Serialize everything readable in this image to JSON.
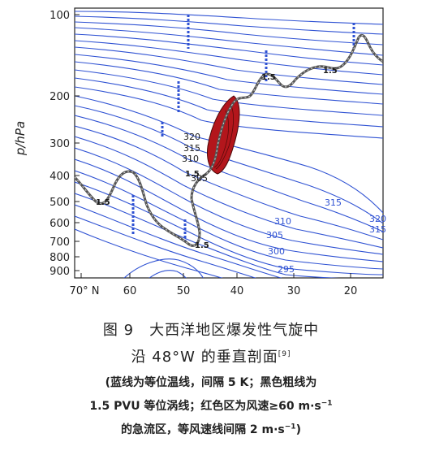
{
  "figure": {
    "y_axis_label": "p/hPa",
    "y_ticks": [
      "100",
      "200",
      "300",
      "400",
      "500",
      "600",
      "700",
      "800",
      "900"
    ],
    "x_ticks": [
      "70° N",
      "60",
      "50",
      "40",
      "30",
      "20"
    ],
    "isentrope_labels": [
      "320",
      "315",
      "310",
      "305",
      "300",
      "295"
    ],
    "isentrope_labels_left": [
      "320",
      "315",
      "310",
      "305"
    ],
    "pv_labels": [
      "1.5",
      "1.5",
      "1.5",
      "1.5",
      "1.5"
    ],
    "colors": {
      "isentrope": "#2f52d3",
      "pv": "#444444",
      "jet_fill": "#b3161c",
      "axis": "#222222"
    }
  },
  "caption": {
    "line1": "图 9　大西洋地区爆发性气旋中",
    "line2": "沿 48°W 的垂直剖面",
    "line2_ref": "[9]",
    "line3": "(蓝线为等位温线，间隔 5 K；黑色粗线为",
    "line4": "1.5 PVU 等位涡线；红色区为风速≥60 m·s",
    "line4_sup": "−1",
    "line5": "的急流区，等风速线间隔 2 m·s",
    "line5_sup": "−1",
    "line5_end": ")"
  }
}
